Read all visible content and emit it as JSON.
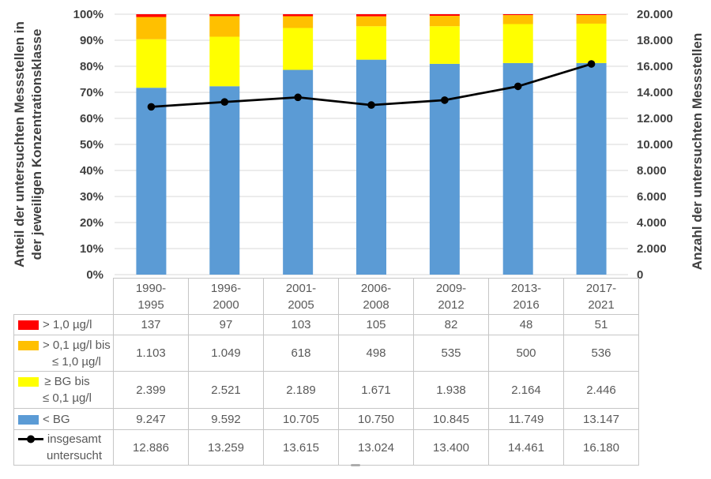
{
  "colors": {
    "red": "#FF0000",
    "orange": "#FFC000",
    "yellow": "#FFFF00",
    "blue": "#5B9BD5",
    "line": "#000000",
    "grid": "#D9D9D9",
    "table_border": "#C6C6C6",
    "table_text": "#595959",
    "axis_text": "#404040"
  },
  "chart_data": {
    "type": "bar",
    "subtype": "percent-stacked-bars-with-line-overlay",
    "grid": true,
    "legend_position": "table-left-column",
    "categories": [
      "1990-\n1995",
      "1996-\n2000",
      "2001-\n2005",
      "2006-\n2008",
      "2009-\n2012",
      "2013-\n2016",
      "2017-\n2021"
    ],
    "series": [
      {
        "name": "> 1,0 µg/l",
        "type": "bar",
        "color": "#FF0000",
        "values": [
          137,
          97,
          103,
          105,
          82,
          48,
          51
        ]
      },
      {
        "name": "> 0,1 µg/l bis ≤ 1,0 µg/l",
        "type": "bar",
        "color": "#FFC000",
        "values": [
          1103,
          1049,
          618,
          498,
          535,
          500,
          536
        ]
      },
      {
        "name": "≥ BG bis ≤ 0,1 µg/l",
        "type": "bar",
        "color": "#FFFF00",
        "values": [
          2399,
          2521,
          2189,
          1671,
          1938,
          2164,
          2446
        ]
      },
      {
        "name": "< BG",
        "type": "bar",
        "color": "#5B9BD5",
        "values": [
          9247,
          9592,
          10705,
          10750,
          10845,
          11749,
          13147
        ]
      },
      {
        "name": "insgesamt untersucht",
        "type": "line",
        "axis": "right",
        "color": "#000000",
        "values": [
          12886,
          13259,
          13615,
          13024,
          13400,
          14461,
          16180
        ]
      }
    ],
    "left_axis": {
      "title": "Anteil der untersuchten Messstellen in der jeweiligen Konzentrationsklasse",
      "title_lines": [
        "Anteil der untersuchten Messstellen in",
        "der jeweiligen Konzentrationsklasse"
      ],
      "ticks": [
        "100%",
        "90%",
        "80%",
        "70%",
        "60%",
        "50%",
        "40%",
        "30%",
        "20%",
        "10%",
        "0%"
      ],
      "min": 0,
      "max": 100,
      "unit": "%"
    },
    "right_axis": {
      "title": "Anzahl der untersuchten Messstellen",
      "ticks": [
        "20.000",
        "18.000",
        "16.000",
        "14.000",
        "12.000",
        "10.000",
        "8.000",
        "6.000",
        "4.000",
        "2.000",
        "0"
      ],
      "min": 0,
      "max": 20000
    }
  },
  "table": {
    "column_headers": [
      "1990-\n1995",
      "1996-\n2000",
      "2001-\n2005",
      "2006-\n2008",
      "2009-\n2012",
      "2013-\n2016",
      "2017-\n2021"
    ],
    "rows": [
      {
        "swatch": "red",
        "label": "> 1,0 µg/l",
        "values": [
          "137",
          "97",
          "103",
          "105",
          "82",
          "48",
          "51"
        ]
      },
      {
        "swatch": "orange",
        "label": "> 0,1 µg/l bis\n≤ 1,0 µg/l",
        "values": [
          "1.103",
          "1.049",
          "618",
          "498",
          "535",
          "500",
          "536"
        ]
      },
      {
        "swatch": "yellow",
        "label": "≥ BG bis\n≤ 0,1 µg/l",
        "values": [
          "2.399",
          "2.521",
          "2.189",
          "1.671",
          "1.938",
          "2.164",
          "2.446"
        ]
      },
      {
        "swatch": "blue",
        "label": "< BG",
        "values": [
          "9.247",
          "9.592",
          "10.705",
          "10.750",
          "10.845",
          "11.749",
          "13.147"
        ]
      },
      {
        "swatch": "line-marker",
        "label": "insgesamt\nuntersucht",
        "values": [
          "12.886",
          "13.259",
          "13.615",
          "13.024",
          "13.400",
          "14.461",
          "16.180"
        ]
      }
    ]
  }
}
